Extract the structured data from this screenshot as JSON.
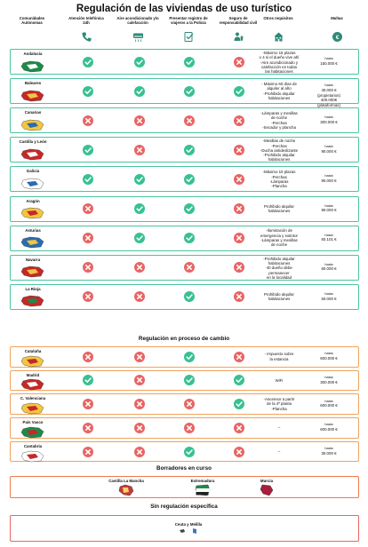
{
  "title": "Regulación de las viviendas de uso turístico",
  "headers": [
    {
      "label": "Comunidades Autónomas",
      "icon": "none"
    },
    {
      "label": "Atención telefónica 24h",
      "icon": "phone-icon"
    },
    {
      "label": "Aire acondicionado y/o calefacción",
      "icon": "air-conditioner-icon"
    },
    {
      "label": "Presentar registro de viajeros a la Policía",
      "icon": "register-check-icon"
    },
    {
      "label": "Seguro de responsabilidad civil",
      "icon": "insurance-person-icon"
    },
    {
      "label": "Otros requisitos",
      "icon": "house-icon"
    },
    {
      "label": "Multas",
      "icon": "euro-icon"
    }
  ],
  "colors": {
    "ok": "#38c190",
    "no": "#e86565",
    "regulated_border": "#4cc4a0",
    "in_change_border": "#f3a25a",
    "draft_border": "#f07a4a",
    "no_reg_border": "#e86565"
  },
  "regulated": [
    {
      "name": "Andalucía",
      "status": [
        "ok",
        "ok",
        "ok",
        "no"
      ],
      "req": [
        "-Máximo 15 plazas",
        "o 4 si el dueño vive ahí",
        "-Aire acondicionado y",
        "calefacción en todas",
        "las habitaciones"
      ],
      "fine": [
        "hasta",
        "150.000 €"
      ]
    },
    {
      "name": "Baleares",
      "status": [
        "ok",
        "ok",
        "ok",
        "ok"
      ],
      "req": [
        "- Máximo 60 días de",
        "alquiler al año",
        "-Prohibido alquilar",
        "habitaciones"
      ],
      "fine": [
        "hasta",
        "40.000 € (propietarios)",
        "400.000€ (plataformas)"
      ]
    },
    {
      "name": "Canarias",
      "status": [
        "no",
        "no",
        "no",
        "no"
      ],
      "req": [
        "-Lámparas y mesillas",
        "de noche",
        "-Perchas",
        "-Secador y plancha"
      ],
      "fine": [
        "hasta",
        "300.000 €"
      ]
    },
    {
      "name": "Castilla y León",
      "status": [
        "ok",
        "no",
        "ok",
        "no"
      ],
      "req": [
        "-Mesillas de noche",
        "-Perchas",
        "-Ducha antideslizante",
        "-Prohibido alquilar",
        "habitaciones"
      ],
      "fine": [
        "hasta",
        "90.000 €"
      ]
    },
    {
      "name": "Galicia",
      "status": [
        "ok",
        "ok",
        "ok",
        "no"
      ],
      "req": [
        "-Máximo 10 plazas",
        "-Perchas",
        "-Lámparas",
        "-Plancha"
      ],
      "fine": [
        "hasta",
        "90.000 €"
      ]
    },
    {
      "name": "Aragón",
      "status": [
        "no",
        "ok",
        "ok",
        "no"
      ],
      "req": [
        "Prohibido alquilar",
        "habitaciones"
      ],
      "fine": [
        "hasta",
        "90.000 €"
      ]
    },
    {
      "name": "Asturias",
      "status": [
        "no",
        "ok",
        "ok",
        "no"
      ],
      "req": [
        "-Iluminación de",
        "emergencia y extintor",
        "-Lámparas y mesillas",
        "de noche"
      ],
      "fine": [
        "hasta",
        "60.101 €"
      ]
    },
    {
      "name": "Navarra",
      "status": [
        "no",
        "no",
        "no",
        "no"
      ],
      "req": [
        "-Prohibido alquilar",
        "habitaciones",
        "-El dueño debe",
        "permanecer",
        "en la localidad"
      ],
      "fine": [
        "hasta",
        "60.000 €"
      ]
    },
    {
      "name": "La Rioja",
      "status": [
        "no",
        "no",
        "ok",
        "no"
      ],
      "req": [
        "Prohibido alquilar",
        "habitaciones"
      ],
      "fine": [
        "hasta",
        "60.000 €"
      ]
    }
  ],
  "section_change": "Regulación en proceso de cambio",
  "changing": [
    {
      "name": "Cataluña",
      "status": [
        "no",
        "no",
        "ok",
        "no"
      ],
      "req": [
        "- Impuesto sobre",
        "la estancia"
      ],
      "fine": [
        "hasta",
        "600.000 €"
      ]
    },
    {
      "name": "Madrid",
      "status": [
        "ok",
        "no",
        "ok",
        "ok"
      ],
      "req": [
        "WiFi"
      ],
      "fine": [
        "hasta",
        "300.000 €"
      ]
    },
    {
      "name": "C. Valenciana",
      "status": [
        "no",
        "no",
        "no",
        "ok"
      ],
      "req": [
        "-Ascensor a partir",
        "de la 4ª planta",
        "-Plancha"
      ],
      "fine": [
        "hasta",
        "600.000 €"
      ]
    },
    {
      "name": "País Vasco",
      "status": [
        "no",
        "no",
        "no",
        "no"
      ],
      "req": [
        "–"
      ],
      "fine": [
        "hasta",
        "600.000 €"
      ]
    },
    {
      "name": "Cantabria",
      "status": [
        "no",
        "no",
        "ok",
        "no"
      ],
      "req": [
        "–"
      ],
      "fine": [
        "hasta",
        "30.000 €"
      ]
    }
  ],
  "section_drafts": "Borradores en curso",
  "drafts": [
    "Castilla La Mancha",
    "Extremadura",
    "Murcia"
  ],
  "section_none": "Sin regulación específica",
  "none": [
    "Ceuta y Melilla"
  ]
}
